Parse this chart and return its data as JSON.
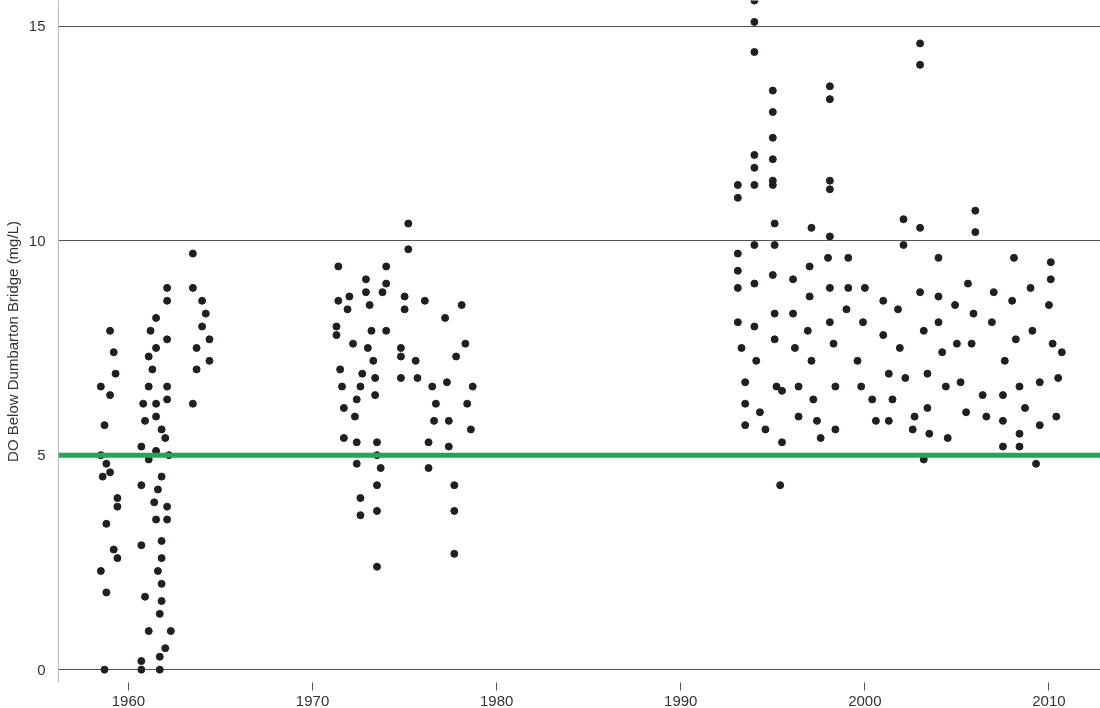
{
  "chart_data": {
    "type": "scatter",
    "ylabel": "DO Below Dumbarton Bridge (mg/L)",
    "xlim": [
      1956.2,
      2012.8
    ],
    "xticks": [
      1960,
      1970,
      1980,
      1990,
      2000,
      2010
    ],
    "ylim": [
      -0.3,
      15.6
    ],
    "yticks": [
      0,
      5,
      10,
      15
    ],
    "grid": "y",
    "marker": "circle",
    "ref_lines": [
      {
        "axis": "y",
        "value": 5,
        "color": "#2ca05a"
      }
    ],
    "series": [
      {
        "color": "#231f20",
        "x": [
          1959.0,
          1959.2,
          1959.3,
          1958.5,
          1959.0,
          1958.7,
          1958.5,
          1958.8,
          1958.6,
          1959.0,
          1959.4,
          1959.4,
          1958.8,
          1959.2,
          1959.4,
          1958.5,
          1958.8,
          1958.7,
          1962.1,
          1962.1,
          1961.5,
          1961.2,
          1962.1,
          1961.5,
          1961.1,
          1961.3,
          1962.1,
          1962.1,
          1961.1,
          1960.8,
          1961.5,
          1961.5,
          1960.9,
          1961.8,
          1962.0,
          1960.7,
          1961.5,
          1962.2,
          1961.1,
          1961.8,
          1960.7,
          1961.6,
          1961.4,
          1962.1,
          1961.5,
          1962.1,
          1960.7,
          1961.8,
          1961.8,
          1961.6,
          1961.8,
          1960.9,
          1961.8,
          1961.7,
          1962.3,
          1961.1,
          1962.0,
          1961.7,
          1960.7,
          1960.7,
          1961.7,
          1963.5,
          1963.5,
          1964.0,
          1964.2,
          1964.0,
          1964.4,
          1963.7,
          1964.4,
          1963.7,
          1963.5,
          1971.4,
          1972.0,
          1971.4,
          1971.9,
          1972.9,
          1972.9,
          1973.1,
          1973.8,
          1974.0,
          1974.0,
          1975.0,
          1975.0,
          1975.2,
          1975.2,
          1976.1,
          1977.2,
          1978.1,
          1971.3,
          1971.3,
          1973.2,
          1974.0,
          1972.2,
          1973.0,
          1973.3,
          1974.8,
          1974.8,
          1975.6,
          1978.3,
          1977.8,
          1971.5,
          1972.7,
          1973.4,
          1974.8,
          1975.7,
          1976.5,
          1977.3,
          1978.7,
          1971.6,
          1972.6,
          1973.4,
          1972.4,
          1971.7,
          1972.3,
          1976.7,
          1978.4,
          1976.6,
          1977.4,
          1978.6,
          1971.7,
          1972.4,
          1973.5,
          1976.3,
          1977.4,
          1972.4,
          1973.5,
          1973.7,
          1976.3,
          1973.5,
          1977.7,
          1972.6,
          1972.6,
          1973.5,
          1977.7,
          1977.7,
          1973.5,
          1994.0,
          1994.0,
          1994.0,
          1995.0,
          1995.0,
          1995.0,
          1995.0,
          1995.0,
          1995.0,
          1994.0,
          1994.0,
          1994.0,
          1993.1,
          1993.1,
          1998.1,
          1998.1,
          1998.1,
          1998.1,
          2003.0,
          2003.0,
          2006.0,
          2006.0,
          2002.1,
          2002.1,
          2003.0,
          1997.1,
          1995.1,
          1995.1,
          1998.1,
          1995.4,
          2009.3,
          2003.2,
          1997.6,
          1995.5,
          2007.5,
          2008.4,
          2008.4,
          1993.1,
          1993.1,
          1993.1,
          1993.1,
          1993.3,
          1993.5,
          1993.5,
          1993.5,
          1994.0,
          1994.0,
          1994.0,
          1994.1,
          1994.3,
          1994.6,
          1995.0,
          1995.1,
          1995.1,
          1995.2,
          1995.5,
          1996.1,
          1996.1,
          1996.2,
          1996.4,
          1996.4,
          1997.0,
          1997.0,
          1996.9,
          1997.1,
          1997.2,
          1997.4,
          1998.0,
          1998.1,
          1998.1,
          1998.3,
          1998.4,
          1998.4,
          1999.1,
          1999.1,
          1999.0,
          1999.6,
          1999.8,
          2000.0,
          1999.9,
          2000.4,
          2000.6,
          2001.0,
          2001.0,
          2001.3,
          2001.5,
          2001.3,
          2001.8,
          2001.9,
          2002.2,
          2002.7,
          2002.6,
          2003.0,
          2003.2,
          2003.4,
          2003.4,
          2003.5,
          2004.0,
          2004.0,
          2004.0,
          2004.2,
          2004.4,
          2004.5,
          2004.9,
          2005.0,
          2005.2,
          2005.5,
          2005.6,
          2005.9,
          2005.8,
          2006.4,
          2006.6,
          2007.0,
          2006.9,
          2007.6,
          2007.5,
          2007.5,
          2008.1,
          2008.0,
          2008.2,
          2008.4,
          2008.7,
          2009.0,
          2009.1,
          2009.5,
          2009.5,
          2010.1,
          2010.1,
          2010.0,
          2010.2,
          2010.5,
          2010.4,
          2010.7
        ],
        "values": [
          7.9,
          7.4,
          6.9,
          6.6,
          6.4,
          5.7,
          5.0,
          4.8,
          4.5,
          4.6,
          4.0,
          3.8,
          3.4,
          2.8,
          2.6,
          2.3,
          1.8,
          0.0,
          8.9,
          8.6,
          8.2,
          7.9,
          7.7,
          7.5,
          7.3,
          7.0,
          6.6,
          6.3,
          6.6,
          6.2,
          6.2,
          5.9,
          5.8,
          5.6,
          5.4,
          5.2,
          5.1,
          5.0,
          4.9,
          4.5,
          4.3,
          4.2,
          3.9,
          3.8,
          3.5,
          3.5,
          2.9,
          3.0,
          2.6,
          2.3,
          2.0,
          1.7,
          1.6,
          1.3,
          0.9,
          0.9,
          0.5,
          0.3,
          0.2,
          0.0,
          0.0,
          9.7,
          8.9,
          8.6,
          8.3,
          8.0,
          7.7,
          7.5,
          7.2,
          7.0,
          6.2,
          9.4,
          8.7,
          8.6,
          8.4,
          9.1,
          8.8,
          8.5,
          8.8,
          9.4,
          9.0,
          8.7,
          8.4,
          10.4,
          9.8,
          8.6,
          8.2,
          8.5,
          8.0,
          7.8,
          7.9,
          7.9,
          7.6,
          7.5,
          7.2,
          7.5,
          7.3,
          7.2,
          7.6,
          7.3,
          7.0,
          6.9,
          6.8,
          6.8,
          6.8,
          6.6,
          6.7,
          6.6,
          6.6,
          6.6,
          6.4,
          6.3,
          6.1,
          5.9,
          6.2,
          6.2,
          5.8,
          5.8,
          5.6,
          5.4,
          5.3,
          5.3,
          5.3,
          5.2,
          4.8,
          5.0,
          4.7,
          4.7,
          4.3,
          4.3,
          4.0,
          3.6,
          3.7,
          3.7,
          2.7,
          2.4,
          15.6,
          15.1,
          14.4,
          13.5,
          13.0,
          12.4,
          11.9,
          11.4,
          11.3,
          12.0,
          11.7,
          11.3,
          11.3,
          11.0,
          13.6,
          13.3,
          11.4,
          11.2,
          14.6,
          14.1,
          10.7,
          10.2,
          10.5,
          9.9,
          10.3,
          10.3,
          10.4,
          9.9,
          10.1,
          4.3,
          4.8,
          4.9,
          5.4,
          5.3,
          5.2,
          5.2,
          5.5,
          9.7,
          9.3,
          8.9,
          8.1,
          7.5,
          6.7,
          6.2,
          5.7,
          9.9,
          9.0,
          8.0,
          7.2,
          6.0,
          5.6,
          9.2,
          8.3,
          7.7,
          6.6,
          6.5,
          9.1,
          8.3,
          7.5,
          6.6,
          5.9,
          9.4,
          8.7,
          7.9,
          7.2,
          6.3,
          5.8,
          9.6,
          8.9,
          8.1,
          7.6,
          6.6,
          5.6,
          9.6,
          8.9,
          8.4,
          7.2,
          6.6,
          8.9,
          8.1,
          6.3,
          5.8,
          8.6,
          7.8,
          6.9,
          6.3,
          5.8,
          8.4,
          7.5,
          6.8,
          5.9,
          5.6,
          8.8,
          7.9,
          6.9,
          6.1,
          5.5,
          9.6,
          8.7,
          8.1,
          7.4,
          6.6,
          5.4,
          8.5,
          7.6,
          6.7,
          6.0,
          9.0,
          8.3,
          7.6,
          6.4,
          5.9,
          8.8,
          8.1,
          7.2,
          6.4,
          5.8,
          9.6,
          8.6,
          7.7,
          6.6,
          6.1,
          8.9,
          7.9,
          6.7,
          5.7,
          9.5,
          9.1,
          8.5,
          7.6,
          6.8,
          5.9,
          7.4
        ]
      }
    ]
  }
}
